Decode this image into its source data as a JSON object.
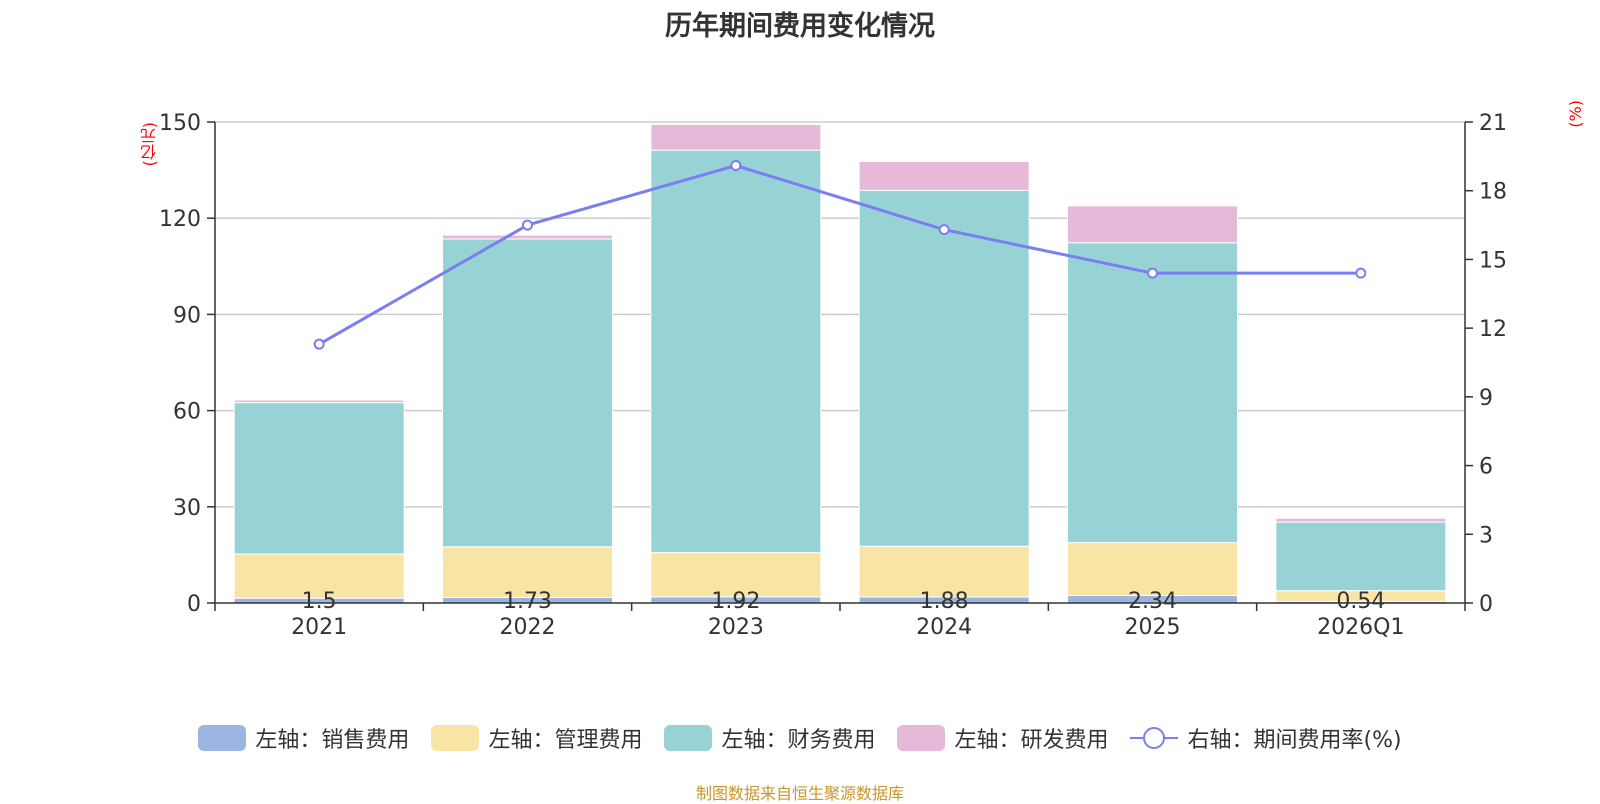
{
  "chart_data": {
    "type": "bar",
    "title": "历年期间费用变化情况",
    "categories": [
      "2021",
      "2022",
      "2023",
      "2024",
      "2025",
      "2026Q1"
    ],
    "left_unit": "(亿元)",
    "right_unit": "(%)",
    "ylim_left": [
      0,
      150
    ],
    "yticks_left": [
      0,
      30,
      60,
      90,
      120,
      150
    ],
    "ylim_right": [
      0,
      21
    ],
    "yticks_right": [
      0,
      3,
      6,
      9,
      12,
      15,
      18,
      21
    ],
    "grid": true,
    "legend_position": "bottom",
    "series": [
      {
        "name": "左轴：销售费用",
        "axis": "left",
        "color": "#9bb4e0",
        "values": [
          1.5,
          1.73,
          1.92,
          1.88,
          2.34,
          0.54
        ],
        "labels": [
          "1.5",
          "1.73",
          "1.92",
          "1.88",
          "2.34",
          "0.54"
        ]
      },
      {
        "name": "左轴：管理费用",
        "axis": "left",
        "color": "#f8e5a5",
        "values": [
          13.8,
          15.8,
          13.8,
          15.8,
          16.5,
          3.3
        ]
      },
      {
        "name": "左轴：财务费用",
        "axis": "left",
        "color": "#97d3d4",
        "values": [
          47.2,
          96.0,
          125.5,
          111.0,
          93.5,
          21.4
        ]
      },
      {
        "name": "左轴：研发费用",
        "axis": "left",
        "color": "#e6b9d9",
        "values": [
          0.8,
          1.2,
          8.0,
          9.0,
          11.5,
          1.2
        ]
      },
      {
        "name": "右轴：期间费用率(%)",
        "axis": "right",
        "type": "line",
        "color": "#7b7ef0",
        "values": [
          11.3,
          16.5,
          19.1,
          16.3,
          14.4,
          14.4
        ]
      }
    ]
  },
  "source_note": "制图数据来自恒生聚源数据库"
}
